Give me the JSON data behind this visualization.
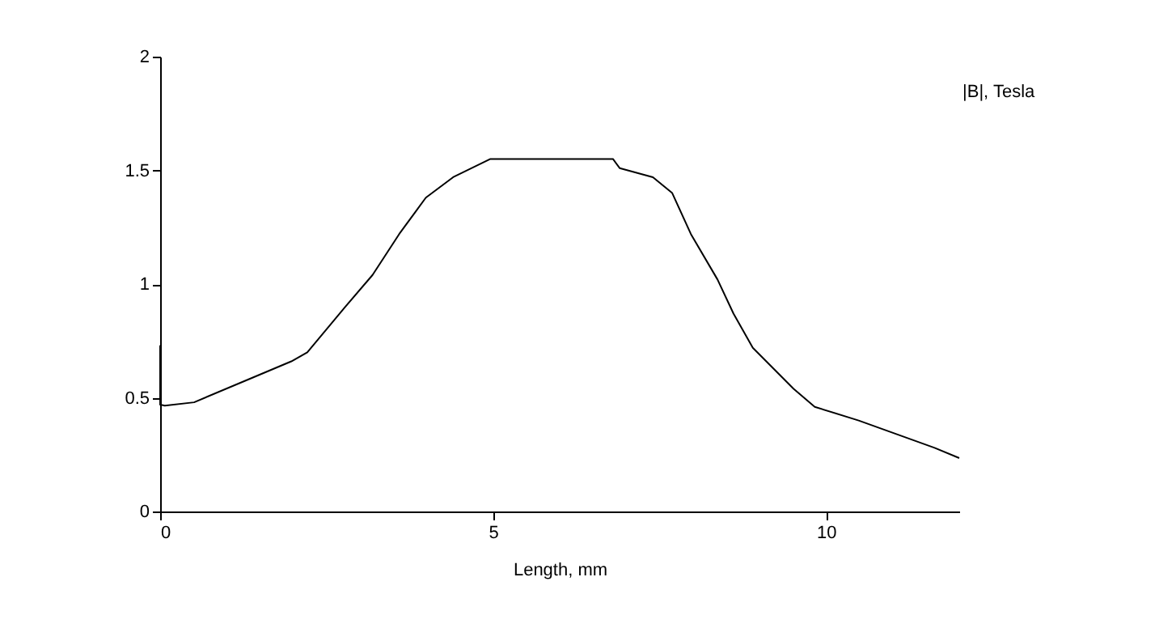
{
  "chart_data": {
    "type": "line",
    "xlabel": "Length, mm",
    "annotations": [
      "|B|, Tesla"
    ],
    "series": [
      {
        "color": "#000000",
        "x": [
          0,
          0,
          0.07,
          0.51,
          1.4,
          1.97,
          2.21,
          2.78,
          3.19,
          3.59,
          3.84,
          3.99,
          4.4,
          4.96,
          6.8,
          6.9,
          7.4,
          7.69,
          7.97,
          8.37,
          8.61,
          8.9,
          9.51,
          9.83,
          10.49,
          11.63,
          12
        ],
        "values": [
          0.73,
          0.47,
          0.465,
          0.48,
          0.59,
          0.66,
          0.7,
          0.9,
          1.04,
          1.22,
          1.32,
          1.38,
          1.47,
          1.55,
          1.55,
          1.51,
          1.47,
          1.4,
          1.22,
          1.02,
          0.87,
          0.72,
          0.54,
          0.46,
          0.4,
          0.28,
          0.235
        ]
      }
    ],
    "xlim": [
      0,
      12
    ],
    "ylim": [
      0,
      2
    ],
    "xticks": [
      0,
      5,
      10
    ],
    "yticks": [
      0,
      0.5,
      1,
      1.5,
      2
    ],
    "grid": false,
    "legend": false
  }
}
